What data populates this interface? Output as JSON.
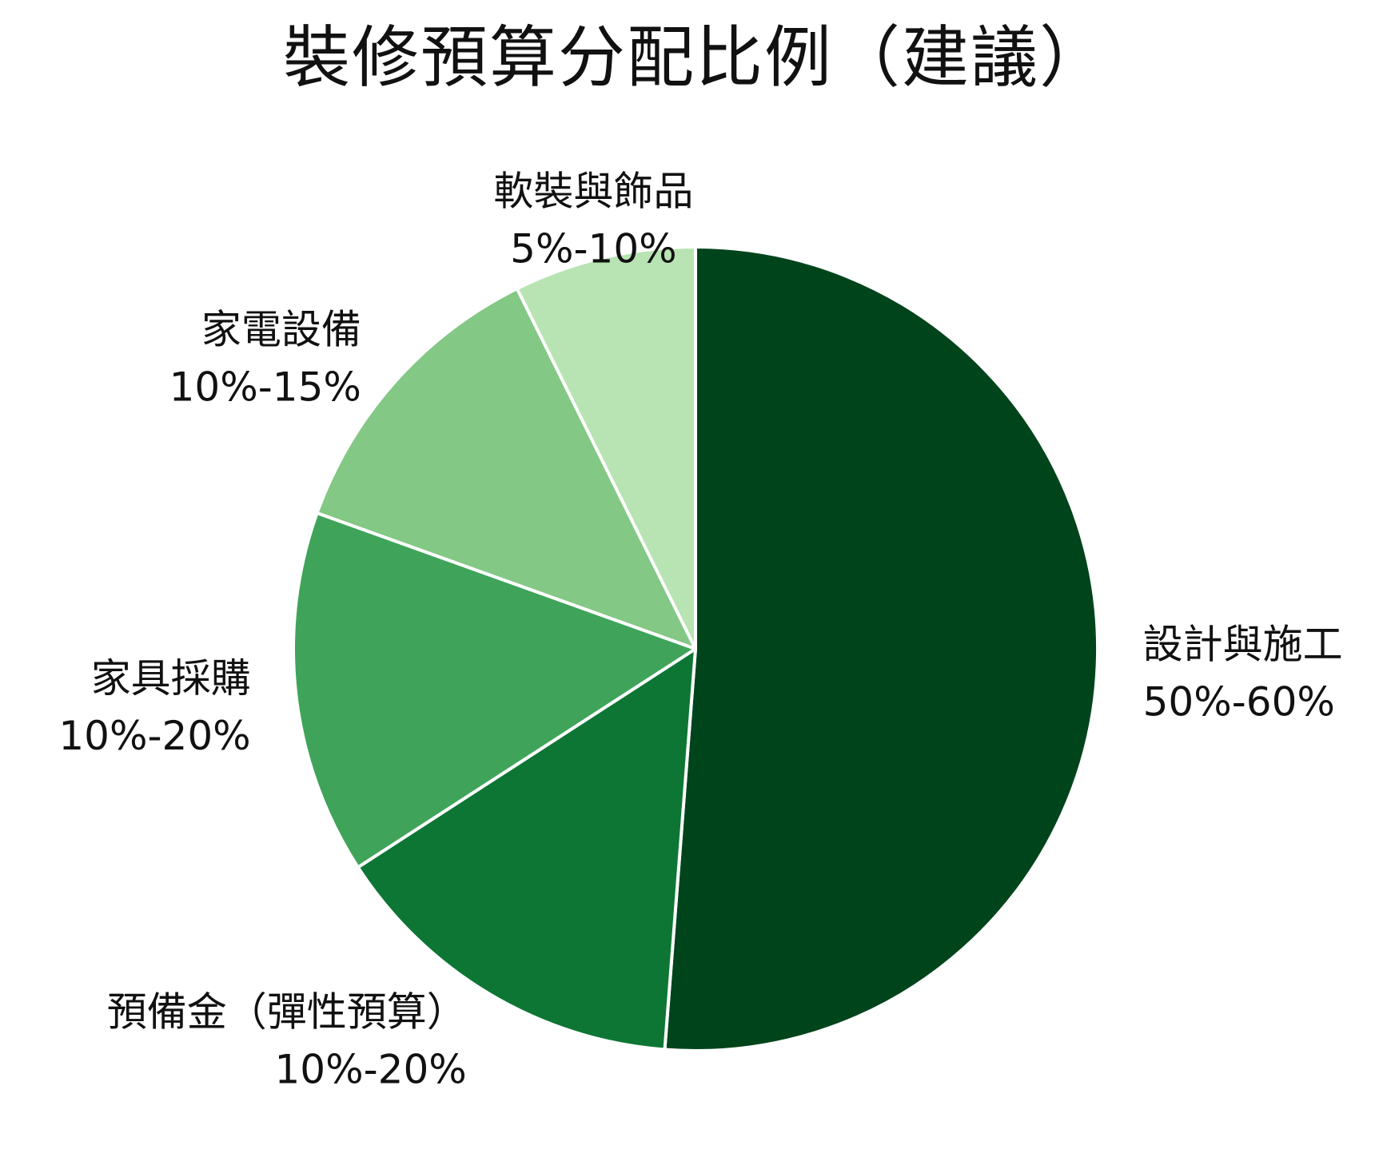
{
  "chart_data": {
    "type": "pie",
    "title": "裝修預算分配比例（建議）",
    "start_angle_deg": 0,
    "direction": "clockwise",
    "slices": [
      {
        "label": "設計與施工",
        "range": "50%-60%",
        "value": 52.5,
        "color": "#00441B"
      },
      {
        "label": "預備金（彈性預算）",
        "range": "10%-20%",
        "value": 15.0,
        "color": "#0D7634"
      },
      {
        "label": "家具採購",
        "range": "10%-20%",
        "value": 15.0,
        "color": "#3FA45A"
      },
      {
        "label": "家電設備",
        "range": "10%-15%",
        "value": 12.5,
        "color": "#83C884"
      },
      {
        "label": "軟裝與飾品",
        "range": "5%-10%",
        "value": 7.5,
        "color": "#B8E3B3"
      }
    ]
  }
}
